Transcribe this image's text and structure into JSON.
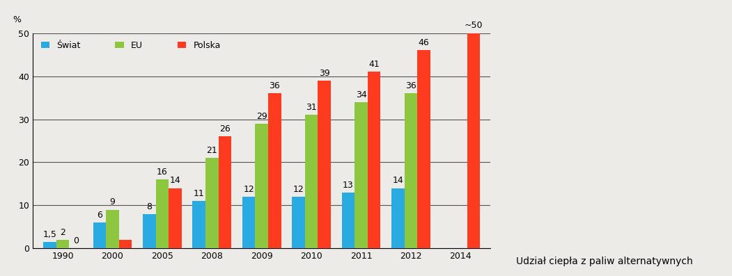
{
  "chart_data": {
    "type": "bar",
    "y_label": "%",
    "caption": "Udział ciepła z paliw alternatywnych",
    "categories": [
      "1990",
      "2000",
      "2005",
      "2008",
      "2009",
      "2010",
      "2011",
      "2012",
      "2014"
    ],
    "series": [
      {
        "name": "Świat",
        "color": "#29abe2",
        "values": [
          1.5,
          6,
          8,
          11,
          12,
          12,
          13,
          14,
          null
        ],
        "value_labels": [
          "1,5",
          "6",
          "8",
          "11",
          "12",
          "12",
          "13",
          "14",
          null
        ]
      },
      {
        "name": "EU",
        "color": "#8dc63f",
        "values": [
          2,
          9,
          16,
          21,
          29,
          31,
          34,
          36,
          null
        ],
        "value_labels": [
          "2",
          "9",
          "16",
          "21",
          "29",
          "31",
          "34",
          "36",
          null
        ]
      },
      {
        "name": "Polska",
        "color": "#ff3b1f",
        "values": [
          0,
          2,
          14,
          26,
          36,
          39,
          41,
          46,
          50
        ],
        "value_labels": [
          "0",
          null,
          "14",
          "26",
          "36",
          "39",
          "41",
          "46",
          "~50"
        ]
      }
    ],
    "ylim": [
      0,
      50
    ],
    "yticks": [
      0,
      10,
      20,
      30,
      40,
      50
    ],
    "grid": true,
    "legend": "upper left",
    "data_labels": true
  }
}
